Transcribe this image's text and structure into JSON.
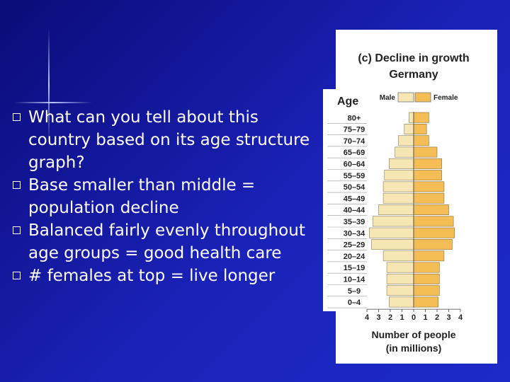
{
  "slide": {
    "bullets": [
      "What can you tell about this country based on its age structure graph?",
      "Base smaller than middle = population decline",
      "Balanced fairly evenly throughout age groups = good health care",
      "# females at top = live longer"
    ]
  },
  "chart_data": {
    "type": "bar",
    "orientation": "horizontal-pyramid",
    "title": "(c) Decline in growth",
    "subtitle": "Germany",
    "age_label": "Age",
    "xlabel": "Number of people",
    "xlabel_units": "(in millions)",
    "categories": [
      "80+",
      "75–79",
      "70–74",
      "65–69",
      "60–64",
      "55–59",
      "50–54",
      "45–49",
      "40–44",
      "35–39",
      "30–34",
      "25–29",
      "20–24",
      "15–19",
      "10–14",
      "5–9",
      "0–4"
    ],
    "series": [
      {
        "name": "Male",
        "color": "#f5e6b4",
        "values": [
          0.4,
          0.8,
          1.3,
          1.6,
          2.1,
          2.5,
          2.6,
          2.6,
          3.0,
          3.5,
          3.8,
          3.6,
          2.6,
          2.3,
          2.3,
          2.3,
          2.1
        ]
      },
      {
        "name": "Female",
        "color": "#f5bd55",
        "values": [
          1.3,
          1.1,
          1.3,
          2.0,
          2.4,
          2.4,
          2.6,
          2.6,
          3.0,
          3.4,
          3.5,
          3.3,
          2.6,
          2.2,
          2.2,
          2.2,
          2.1
        ]
      }
    ],
    "xticks": [
      "4",
      "3",
      "2",
      "1",
      "0",
      "1",
      "2",
      "3",
      "4"
    ],
    "xlim": [
      -4,
      4
    ],
    "legend_position": "top"
  }
}
